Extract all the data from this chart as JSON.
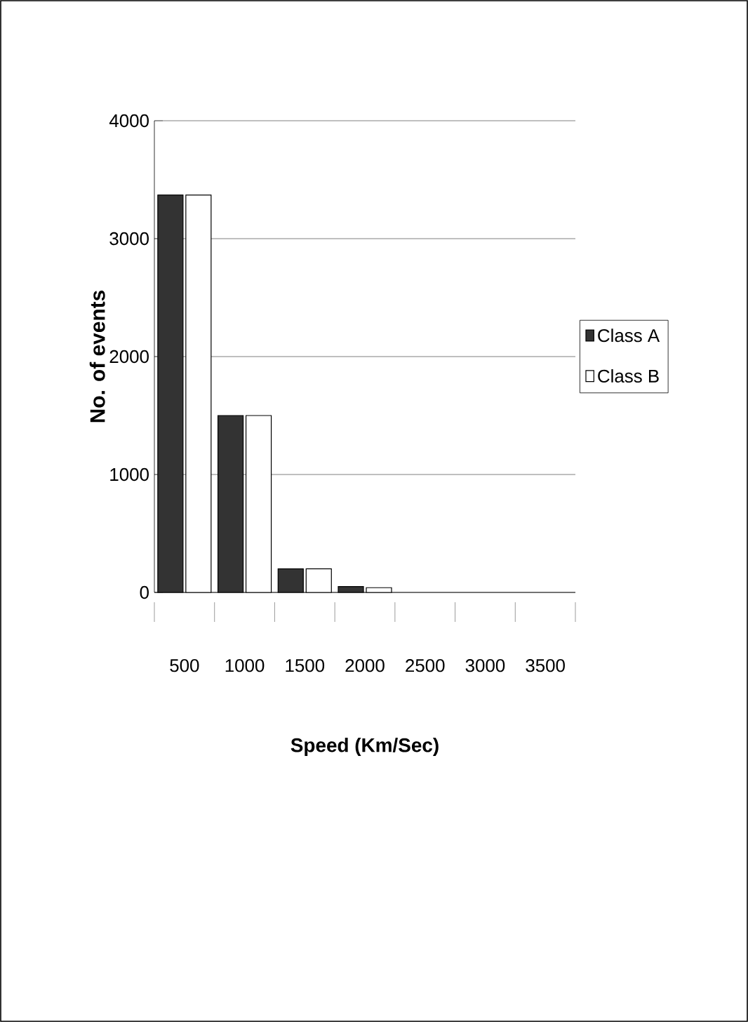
{
  "chart_data": {
    "type": "bar",
    "xlabel": "Speed (Km/Sec)",
    "ylabel": "No. of events",
    "categories": [
      "500",
      "1000",
      "1500",
      "2000",
      "2500",
      "3000",
      "3500"
    ],
    "series": [
      {
        "name": "Class A",
        "color": "#333333",
        "values": [
          3370,
          1500,
          200,
          50,
          null,
          null,
          null
        ]
      },
      {
        "name": "Class B",
        "color": "#ffffff",
        "values": [
          3370,
          1500,
          200,
          40,
          null,
          null,
          null
        ]
      }
    ],
    "ylim": [
      0,
      4000
    ],
    "yticks": [
      0,
      1000,
      2000,
      3000,
      4000
    ],
    "grid": "y",
    "legend": "right"
  }
}
